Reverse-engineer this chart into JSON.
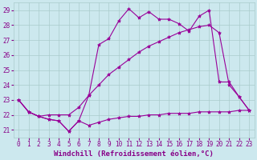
{
  "xlabel": "Windchill (Refroidissement éolien,°C)",
  "background_color": "#cce8ee",
  "line_color": "#990099",
  "grid_color": "#aacccc",
  "xlim": [
    -0.5,
    23.5
  ],
  "ylim": [
    20.5,
    29.5
  ],
  "xticks": [
    0,
    1,
    2,
    3,
    4,
    5,
    6,
    7,
    8,
    9,
    10,
    11,
    12,
    13,
    14,
    15,
    16,
    17,
    18,
    19,
    20,
    21,
    22,
    23
  ],
  "yticks": [
    21,
    22,
    23,
    24,
    25,
    26,
    27,
    28,
    29
  ],
  "line1_x": [
    0,
    1,
    2,
    3,
    4,
    5,
    6,
    7,
    8,
    9,
    10,
    11,
    12,
    13,
    14,
    15,
    16,
    17,
    18,
    19,
    20,
    21,
    22,
    23
  ],
  "line1_y": [
    23.0,
    22.2,
    21.9,
    21.7,
    21.6,
    20.9,
    21.6,
    21.3,
    21.5,
    21.7,
    21.8,
    21.9,
    21.9,
    22.0,
    22.0,
    22.1,
    22.1,
    22.1,
    22.2,
    22.2,
    22.2,
    22.2,
    22.3,
    22.3
  ],
  "line2_x": [
    0,
    1,
    2,
    3,
    4,
    5,
    6,
    7,
    8,
    9,
    10,
    11,
    12,
    13,
    14,
    15,
    16,
    17,
    18,
    19,
    20,
    21,
    22,
    23
  ],
  "line2_y": [
    23.0,
    22.2,
    21.9,
    22.0,
    22.0,
    22.0,
    22.5,
    23.3,
    24.0,
    24.7,
    25.2,
    25.7,
    26.2,
    26.6,
    26.9,
    27.2,
    27.5,
    27.7,
    27.9,
    28.0,
    27.5,
    24.0,
    23.2,
    22.3
  ],
  "line3_x": [
    0,
    1,
    2,
    3,
    4,
    5,
    6,
    7,
    8,
    9,
    10,
    11,
    12,
    13,
    14,
    15,
    16,
    17,
    18,
    19,
    20,
    21,
    22,
    23
  ],
  "line3_y": [
    23.0,
    22.2,
    21.9,
    21.7,
    21.6,
    20.9,
    21.6,
    23.3,
    26.7,
    27.1,
    28.3,
    29.1,
    28.5,
    28.9,
    28.4,
    28.4,
    28.1,
    27.6,
    28.6,
    29.0,
    24.2,
    24.2,
    23.2,
    22.3
  ],
  "marker": "*",
  "markersize": 3,
  "linewidth": 0.8,
  "tick_fontsize": 5.5,
  "xlabel_fontsize": 6.5,
  "axis_text_color": "#880088"
}
